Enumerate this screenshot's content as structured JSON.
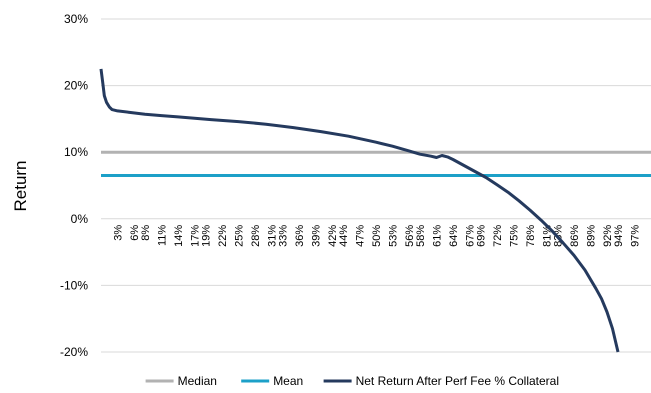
{
  "chart_data": {
    "type": "line",
    "title": "",
    "xlabel": "",
    "ylabel": "Return",
    "ylim": [
      -0.2,
      0.3
    ],
    "yticks": [
      0.3,
      0.2,
      0.1,
      0.0,
      -0.1,
      -0.2
    ],
    "ytick_labels": [
      "30%",
      "20%",
      "10%",
      "0%",
      "-10%",
      "-20%"
    ],
    "xlim": [
      0,
      100
    ],
    "xticks": [
      3,
      6,
      8,
      11,
      14,
      17,
      19,
      22,
      25,
      28,
      31,
      33,
      36,
      39,
      42,
      44,
      47,
      50,
      53,
      56,
      58,
      61,
      64,
      67,
      69,
      72,
      75,
      78,
      81,
      83,
      86,
      89,
      92,
      94,
      97
    ],
    "xtick_labels": [
      "3%",
      "6%",
      "8%",
      "11%",
      "14%",
      "17%",
      "19%",
      "22%",
      "25%",
      "28%",
      "31%",
      "33%",
      "36%",
      "39%",
      "42%",
      "44%",
      "47%",
      "50%",
      "53%",
      "56%",
      "58%",
      "61%",
      "64%",
      "67%",
      "69%",
      "72%",
      "75%",
      "78%",
      "81%",
      "83%",
      "86%",
      "89%",
      "92%",
      "94%",
      "97%"
    ],
    "grid": true,
    "legend_position": "bottom",
    "series": [
      {
        "name": "Median",
        "color": "#b2b2b2",
        "kind": "horizontal",
        "value": 0.1
      },
      {
        "name": "Mean",
        "color": "#1ca0c8",
        "kind": "horizontal",
        "value": 0.065
      },
      {
        "name": "Net Return After Perf Fee % Collateral",
        "color": "#253a5e",
        "kind": "line",
        "x": [
          0,
          0.3,
          0.6,
          1,
          1.5,
          2,
          3,
          5,
          8,
          11,
          14,
          17,
          20,
          25,
          30,
          35,
          40,
          45,
          50,
          53,
          56,
          58,
          60,
          61,
          62,
          63,
          64,
          66,
          68,
          70,
          72,
          74,
          76,
          78,
          80,
          82,
          84,
          86,
          88,
          90,
          91,
          92,
          93,
          94
        ],
        "values": [
          0.225,
          0.205,
          0.185,
          0.175,
          0.168,
          0.164,
          0.162,
          0.16,
          0.157,
          0.155,
          0.153,
          0.151,
          0.149,
          0.146,
          0.142,
          0.137,
          0.131,
          0.124,
          0.115,
          0.109,
          0.102,
          0.097,
          0.094,
          0.092,
          0.095,
          0.093,
          0.089,
          0.08,
          0.071,
          0.062,
          0.051,
          0.04,
          0.027,
          0.013,
          -0.002,
          -0.018,
          -0.036,
          -0.055,
          -0.077,
          -0.105,
          -0.12,
          -0.14,
          -0.165,
          -0.2
        ]
      }
    ]
  }
}
